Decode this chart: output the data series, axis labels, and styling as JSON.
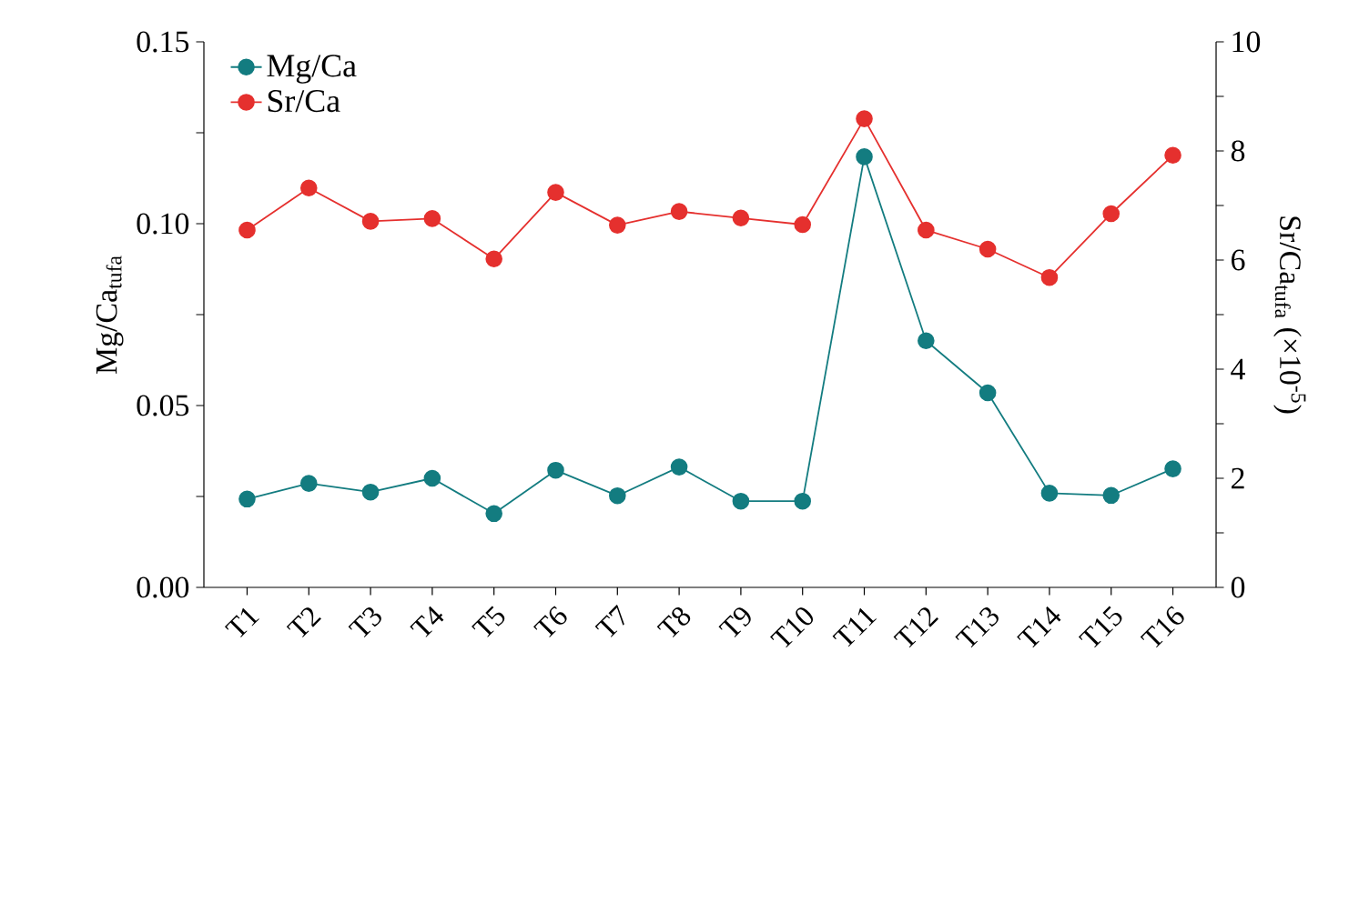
{
  "chart_data": {
    "type": "line",
    "categories": [
      "T1",
      "T2",
      "T3",
      "T4",
      "T5",
      "T6",
      "T7",
      "T8",
      "T9",
      "T10",
      "T11",
      "T12",
      "T13",
      "T14",
      "T15",
      "T16"
    ],
    "series": [
      {
        "name": "Mg/Ca",
        "color": "#137c80",
        "values": [
          0.0243,
          0.0286,
          0.0262,
          0.03,
          0.0203,
          0.0322,
          0.0252,
          0.0331,
          0.0237,
          0.0237,
          0.1184,
          0.0678,
          0.0535,
          0.0259,
          0.0253,
          0.0326
        ]
      },
      {
        "name": "Sr/Ca",
        "color": "#e5302e",
        "axis": "y2",
        "values": [
          6.55,
          7.32,
          6.71,
          6.76,
          6.02,
          7.24,
          6.64,
          6.89,
          6.77,
          6.65,
          8.59,
          6.55,
          6.2,
          5.68,
          6.85,
          7.92
        ]
      }
    ],
    "ylabel": "Mg/Ca$_{tufa}$",
    "y2label": "Sr/Ca$_{tufa}$  (×10$^{-5}$)",
    "ylim": [
      0,
      0.15
    ],
    "yticks": [
      {
        "value": 0,
        "label": "0.00"
      },
      {
        "value": 0.025,
        "label": null
      },
      {
        "value": 0.05,
        "label": "0.05"
      },
      {
        "value": 0.075,
        "label": null
      },
      {
        "value": 0.1,
        "label": "0.10"
      },
      {
        "value": 0.125,
        "label": null
      },
      {
        "value": 0.15,
        "label": "0.15"
      }
    ],
    "y2lim": [
      0,
      10
    ],
    "y2ticks": [
      0,
      {
        "value": 1,
        "label": null
      },
      2,
      {
        "value": 3,
        "label": null
      },
      4,
      {
        "value": 5,
        "label": null
      },
      6,
      {
        "value": 7,
        "label": null
      },
      8,
      {
        "value": 9,
        "label": null
      },
      10
    ],
    "legend": "top left",
    "marker": "circle",
    "line_style": "solid",
    "grid": false
  }
}
